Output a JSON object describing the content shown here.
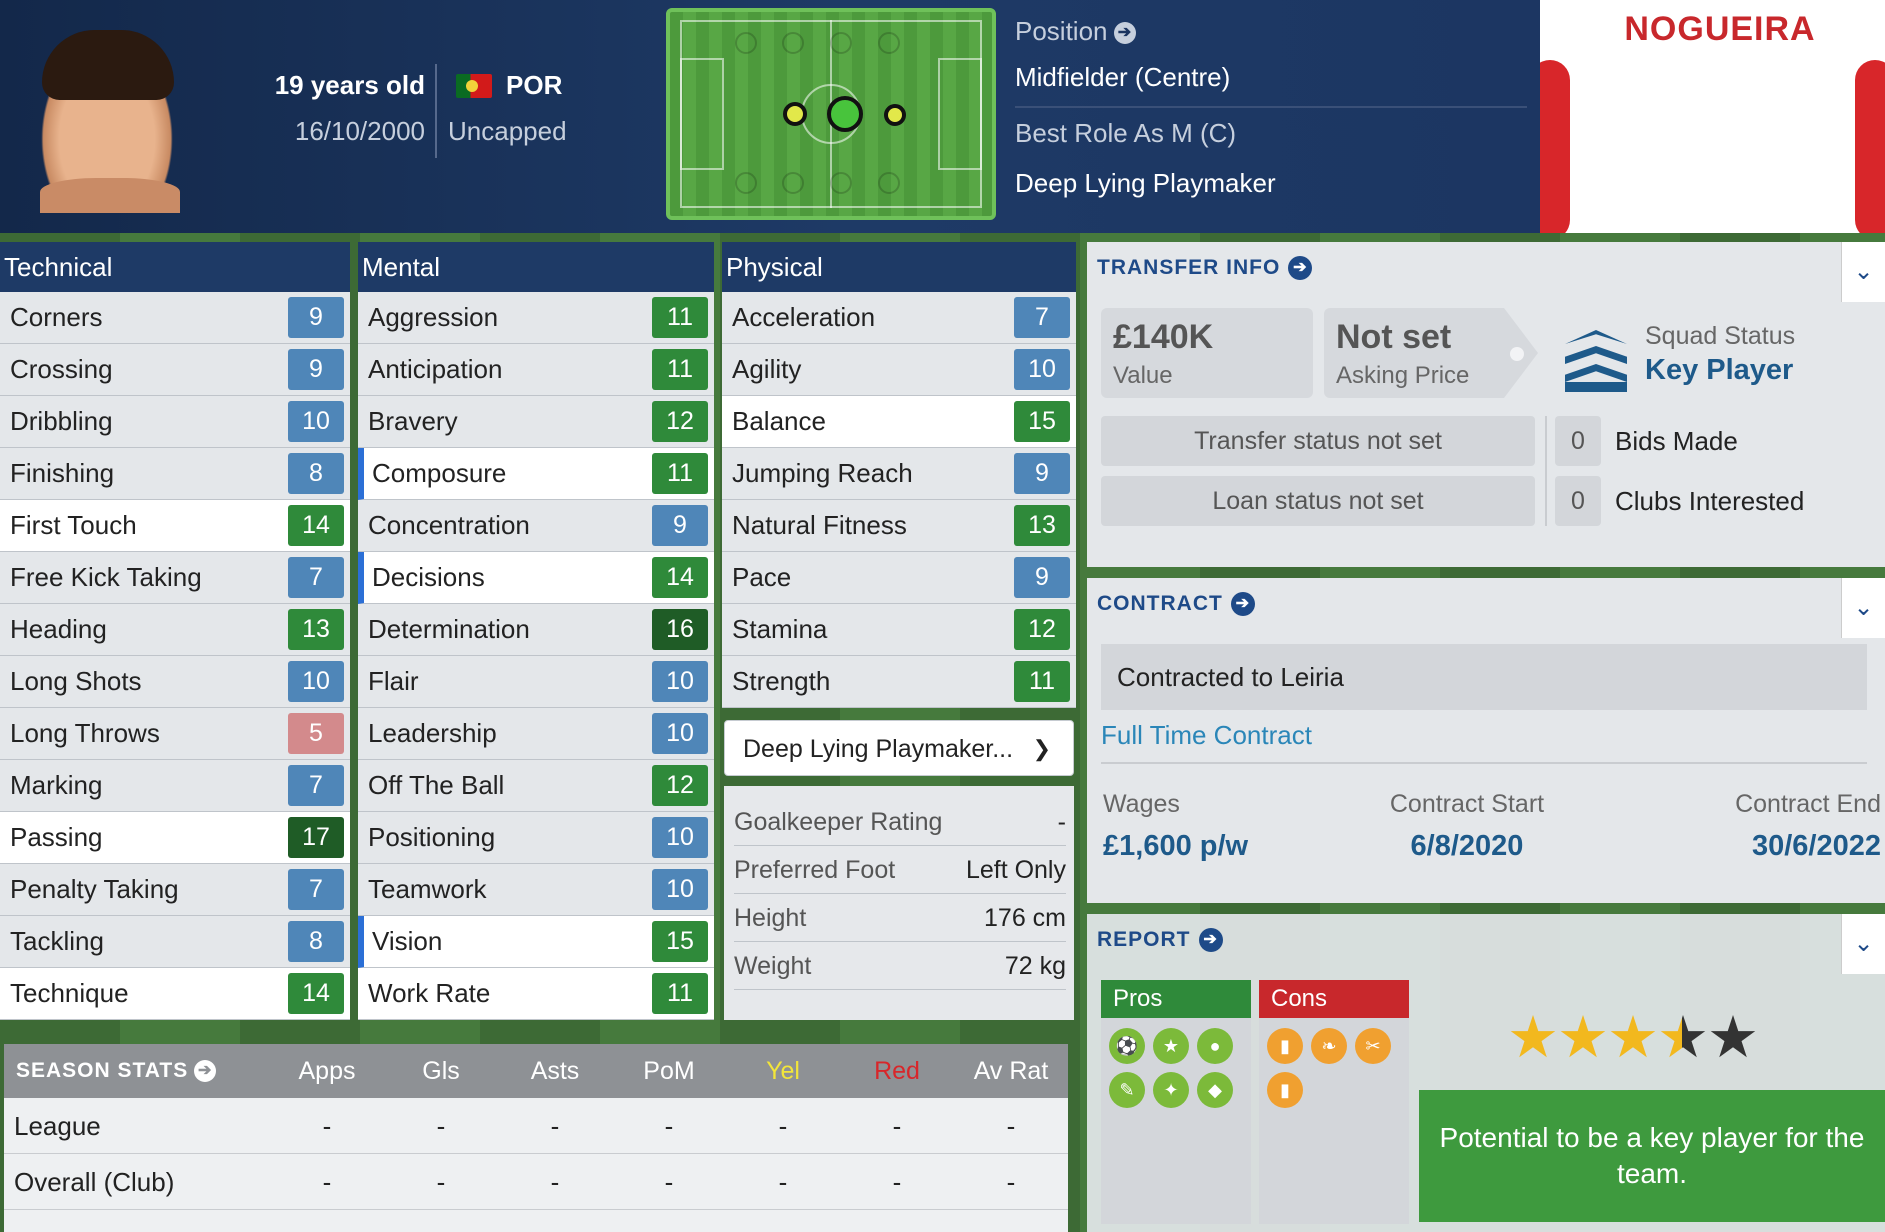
{
  "header": {
    "age": "19 years old",
    "dob": "16/10/2000",
    "nationality": "POR",
    "caps": "Uncapped",
    "position_label": "Position",
    "position": "Midfielder (Centre)",
    "best_role_label": "Best Role As M (C)",
    "best_role": "Deep Lying Playmaker",
    "player_name": "NOGUEIRA"
  },
  "colors": {
    "blue": "#4f86b8",
    "green": "#2f8a3a",
    "darkgreen": "#1f5c26",
    "red": "#d38a8c"
  },
  "technical": {
    "title": "Technical",
    "rows": [
      {
        "label": "Corners",
        "value": "9"
      },
      {
        "label": "Crossing",
        "value": "9"
      },
      {
        "label": "Dribbling",
        "value": "10"
      },
      {
        "label": "Finishing",
        "value": "8"
      },
      {
        "label": "First Touch",
        "value": "14"
      },
      {
        "label": "Free Kick Taking",
        "value": "7"
      },
      {
        "label": "Heading",
        "value": "13"
      },
      {
        "label": "Long Shots",
        "value": "10"
      },
      {
        "label": "Long Throws",
        "value": "5"
      },
      {
        "label": "Marking",
        "value": "7"
      },
      {
        "label": "Passing",
        "value": "17"
      },
      {
        "label": "Penalty Taking",
        "value": "7"
      },
      {
        "label": "Tackling",
        "value": "8"
      },
      {
        "label": "Technique",
        "value": "14"
      }
    ]
  },
  "mental": {
    "title": "Mental",
    "rows": [
      {
        "label": "Aggression",
        "value": "11"
      },
      {
        "label": "Anticipation",
        "value": "11"
      },
      {
        "label": "Bravery",
        "value": "12"
      },
      {
        "label": "Composure",
        "value": "11"
      },
      {
        "label": "Concentration",
        "value": "9"
      },
      {
        "label": "Decisions",
        "value": "14"
      },
      {
        "label": "Determination",
        "value": "16"
      },
      {
        "label": "Flair",
        "value": "10"
      },
      {
        "label": "Leadership",
        "value": "10"
      },
      {
        "label": "Off The Ball",
        "value": "12"
      },
      {
        "label": "Positioning",
        "value": "10"
      },
      {
        "label": "Teamwork",
        "value": "10"
      },
      {
        "label": "Vision",
        "value": "15"
      },
      {
        "label": "Work Rate",
        "value": "11"
      }
    ]
  },
  "physical": {
    "title": "Physical",
    "rows": [
      {
        "label": "Acceleration",
        "value": "7"
      },
      {
        "label": "Agility",
        "value": "10"
      },
      {
        "label": "Balance",
        "value": "15"
      },
      {
        "label": "Jumping Reach",
        "value": "9"
      },
      {
        "label": "Natural Fitness",
        "value": "13"
      },
      {
        "label": "Pace",
        "value": "9"
      },
      {
        "label": "Stamina",
        "value": "12"
      },
      {
        "label": "Strength",
        "value": "11"
      }
    ],
    "role_select": "Deep Lying Playmaker...",
    "info": [
      {
        "label": "Goalkeeper Rating",
        "value": "-"
      },
      {
        "label": "Preferred Foot",
        "value": "Left Only"
      },
      {
        "label": "Height",
        "value": "176 cm"
      },
      {
        "label": "Weight",
        "value": "72 kg"
      }
    ]
  },
  "transfer": {
    "title": "TRANSFER INFO",
    "value": "£140K",
    "value_label": "Value",
    "asking": "Not set",
    "asking_label": "Asking Price",
    "squad_status_label": "Squad Status",
    "squad_status": "Key Player",
    "transfer_status": "Transfer status not set",
    "loan_status": "Loan status not set",
    "bids_count": "0",
    "bids_label": "Bids Made",
    "clubs_count": "0",
    "clubs_label": "Clubs Interested"
  },
  "contract": {
    "title": "CONTRACT",
    "contracted_to": "Contracted to Leiria",
    "type": "Full Time Contract",
    "wages_label": "Wages",
    "wages": "£1,600 p/w",
    "start_label": "Contract Start",
    "start": "6/8/2020",
    "end_label": "Contract End",
    "end": "30/6/2022"
  },
  "report": {
    "title": "REPORT",
    "pros_label": "Pros",
    "cons_label": "Cons",
    "stars": 3.5,
    "max_stars": 5,
    "summary": "Potential to be a key player for the team."
  },
  "season_stats": {
    "title": "SEASON STATS",
    "columns": [
      "Apps",
      "Gls",
      "Asts",
      "PoM",
      "Yel",
      "Red",
      "Av Rat"
    ],
    "rows": [
      {
        "label": "League",
        "values": [
          "-",
          "-",
          "-",
          "-",
          "-",
          "-",
          "-"
        ]
      },
      {
        "label": "Overall (Club)",
        "values": [
          "-",
          "-",
          "-",
          "-",
          "-",
          "-",
          "-"
        ]
      }
    ]
  }
}
